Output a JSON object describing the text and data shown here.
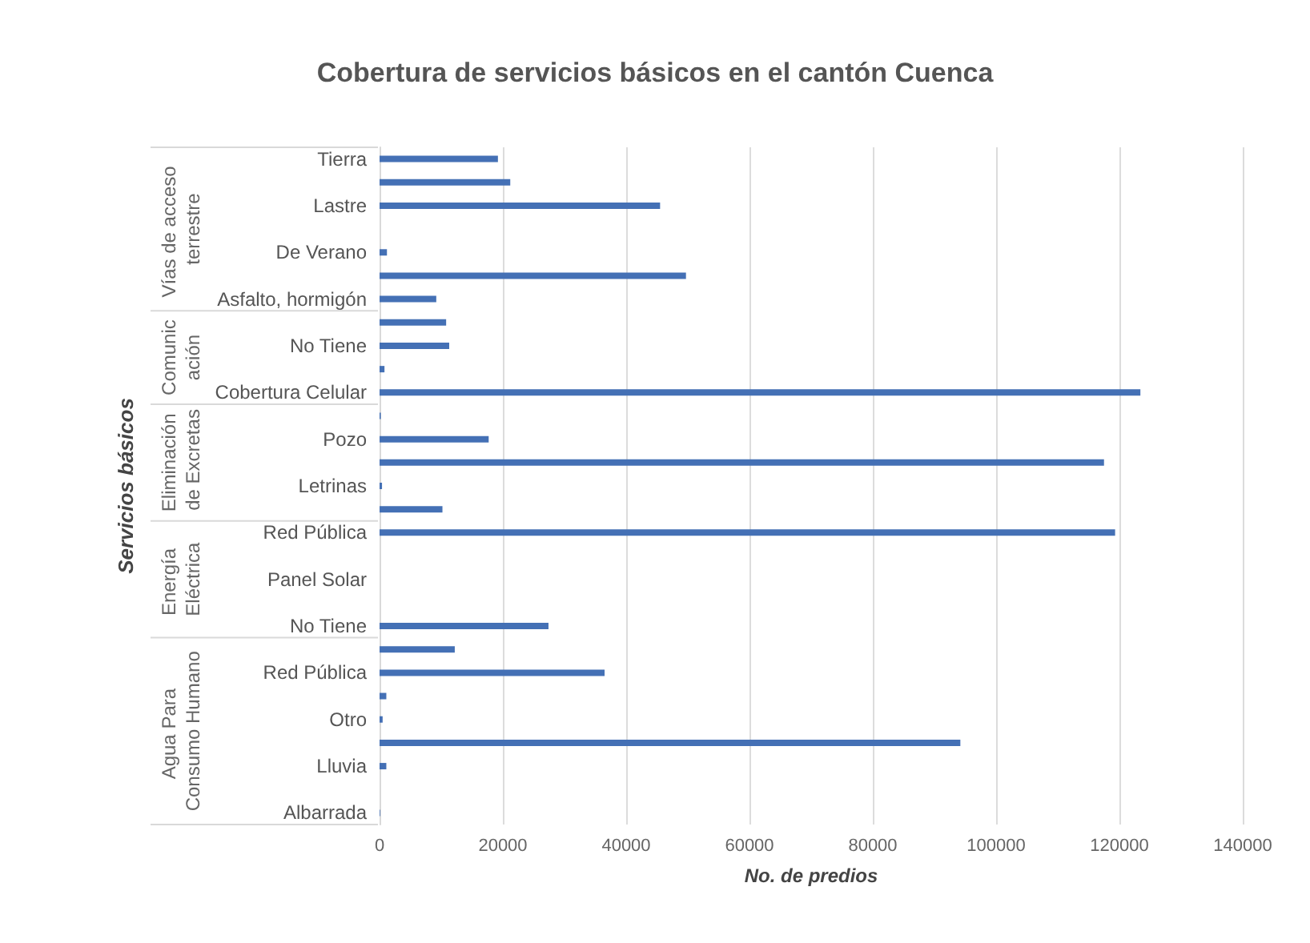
{
  "chart_data": {
    "type": "bar",
    "orientation": "horizontal",
    "title": "Cobertura de servicios básicos en el cantón Cuenca",
    "xlabel": "No. de predios",
    "ylabel": "Servicios básicos",
    "categories": [
      "Tierra",
      null,
      "Lastre",
      null,
      "De Verano",
      null,
      "Asfalto, hormigón",
      null,
      "No Tiene",
      null,
      "Cobertura Celular",
      null,
      "Pozo",
      null,
      "Letrinas",
      null,
      "Red Pública",
      null,
      "Panel Solar",
      null,
      "No Tiene",
      null,
      "Red Pública",
      null,
      "Otro",
      null,
      "Lluvia",
      null,
      "Albarrada"
    ],
    "values": [
      19200,
      21200,
      45500,
      0,
      1200,
      49700,
      9200,
      10800,
      11300,
      800,
      123400,
      200,
      17700,
      117500,
      400,
      10200,
      119300,
      0,
      0,
      0,
      27400,
      12200,
      36500,
      1100,
      500,
      94200,
      1100,
      0,
      100
    ],
    "color": "#4470b5",
    "xlim": [
      0,
      140000
    ],
    "xticks": [
      0,
      20000,
      40000,
      60000,
      80000,
      100000,
      120000,
      140000
    ],
    "grid": "x",
    "annotations": [
      "Vías de acceso terrestre",
      "Comunicación",
      "Eliminación de Excretas",
      "Energía Eléctrica",
      "Agua Para Consumo Humano"
    ]
  }
}
